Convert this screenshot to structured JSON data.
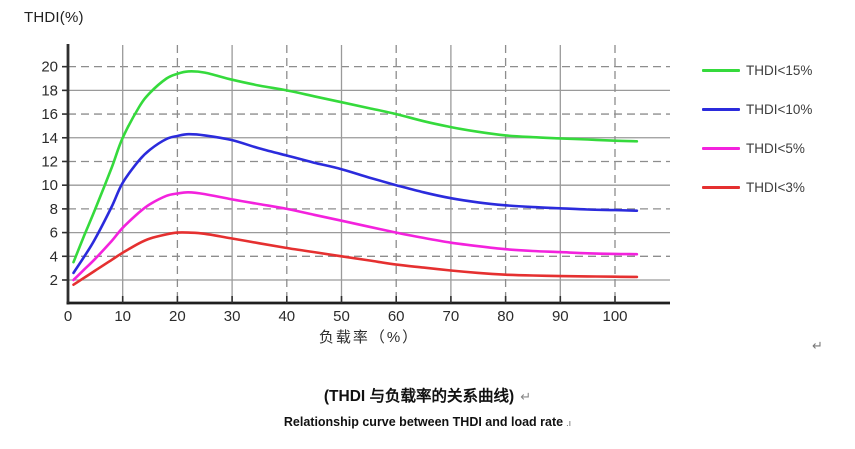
{
  "colors": {
    "axis": "#2f2f2f",
    "grid_solid": "#9a9a9a",
    "grid_dashed": "#8d8d8d",
    "tick_label": "#2b2b2b",
    "series_green": "#35da3c",
    "series_blue": "#2b2bdc",
    "series_magenta": "#f322dd",
    "series_red": "#e53030"
  },
  "chart": {
    "y_axis_title": "THDI(%)",
    "x_axis_title": "负载率（%）"
  },
  "legend": {
    "items": [
      {
        "label": "THDI<15%",
        "color": "#35da3c"
      },
      {
        "label": "THDI<10%",
        "color": "#2b2bdc"
      },
      {
        "label": "THDI<5%",
        "color": "#f322dd"
      },
      {
        "label": "THDI<3%",
        "color": "#e53030"
      }
    ]
  },
  "captions": {
    "line1": "(THDI 与负载率的关系曲线)",
    "line1_mark": "↵",
    "line2": "Relationship curve between THDI and load rate",
    "line2_mark": ".ı",
    "stray_mark": "↵"
  },
  "chart_data": {
    "type": "line",
    "title": "(THDI 与负载率的关系曲线)",
    "subtitle": "Relationship curve between THDI and load rate",
    "xlabel": "负载率（%）",
    "ylabel": "THDI(%)",
    "xlim": [
      0,
      110
    ],
    "ylim": [
      0,
      21
    ],
    "x_ticks": [
      0,
      10,
      20,
      30,
      40,
      50,
      60,
      70,
      80,
      90,
      100
    ],
    "y_ticks": [
      2,
      4,
      6,
      8,
      10,
      12,
      14,
      16,
      18,
      20
    ],
    "grid": "on",
    "grid_style": {
      "solid_y_values": [
        2,
        6,
        10,
        14,
        18
      ],
      "dashed_y_values": [
        4,
        8,
        12,
        16,
        20
      ],
      "solid_x_values": [
        10,
        30,
        50,
        70,
        90
      ],
      "dashed_x_values": [
        20,
        40,
        60,
        80,
        100
      ]
    },
    "legend_position": "right",
    "x": [
      1,
      3,
      5,
      8,
      10,
      13,
      15,
      18,
      20,
      22,
      25,
      30,
      35,
      40,
      45,
      50,
      55,
      60,
      65,
      70,
      75,
      80,
      85,
      90,
      95,
      100,
      104
    ],
    "series": [
      {
        "name": "THDI<15%",
        "color": "#35da3c",
        "y": [
          3.5,
          5.8,
          8.0,
          11.5,
          14.0,
          16.6,
          17.8,
          19.0,
          19.4,
          19.6,
          19.5,
          18.9,
          18.4,
          18.0,
          17.5,
          17.0,
          16.5,
          16.0,
          15.4,
          14.9,
          14.5,
          14.2,
          14.05,
          13.95,
          13.85,
          13.75,
          13.7
        ]
      },
      {
        "name": "THDI<10%",
        "color": "#2b2bdc",
        "y": [
          2.6,
          4.0,
          5.5,
          8.2,
          10.2,
          12.1,
          13.0,
          13.9,
          14.15,
          14.3,
          14.2,
          13.8,
          13.1,
          12.5,
          11.9,
          11.35,
          10.65,
          10.0,
          9.4,
          8.9,
          8.55,
          8.3,
          8.15,
          8.05,
          7.95,
          7.9,
          7.85
        ]
      },
      {
        "name": "THDI<5%",
        "color": "#f322dd",
        "y": [
          2.0,
          2.9,
          3.8,
          5.3,
          6.4,
          7.7,
          8.4,
          9.1,
          9.3,
          9.4,
          9.25,
          8.8,
          8.4,
          8.0,
          7.5,
          7.0,
          6.5,
          6.0,
          5.55,
          5.15,
          4.85,
          4.6,
          4.45,
          4.35,
          4.25,
          4.2,
          4.18
        ]
      },
      {
        "name": "THDI<3%",
        "color": "#e53030",
        "y": [
          1.6,
          2.2,
          2.8,
          3.7,
          4.3,
          5.1,
          5.5,
          5.85,
          6.0,
          6.0,
          5.9,
          5.5,
          5.1,
          4.7,
          4.35,
          4.0,
          3.65,
          3.3,
          3.05,
          2.8,
          2.6,
          2.45,
          2.38,
          2.33,
          2.3,
          2.28,
          2.26
        ]
      }
    ]
  }
}
